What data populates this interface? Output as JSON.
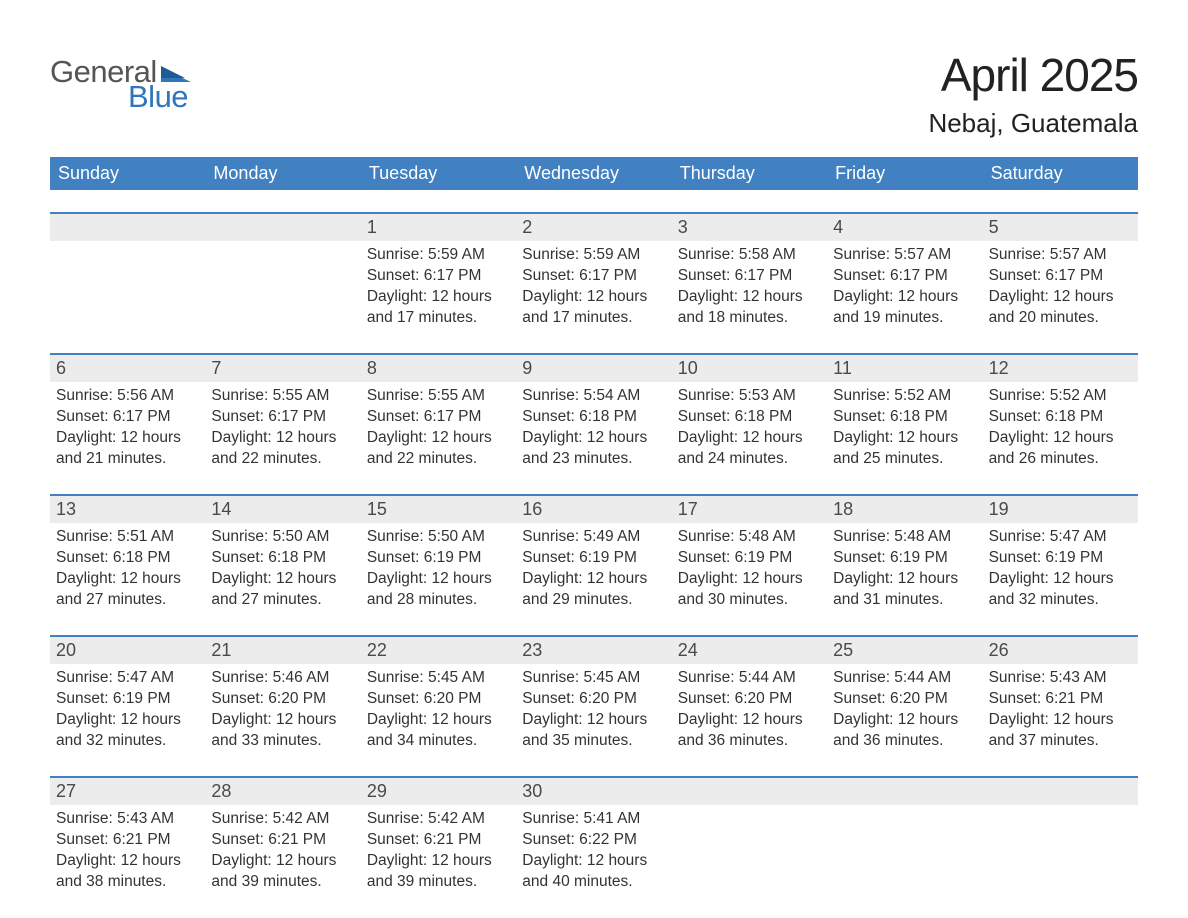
{
  "colors": {
    "header_blue": "#4180c1",
    "accent_line": "#4180c1",
    "row_grey": "#ececec",
    "page_bg": "#ffffff",
    "text": "#333333",
    "logo_grey": "#555555",
    "logo_blue": "#2f76bd"
  },
  "typography": {
    "month_title_fontsize": 46,
    "location_fontsize": 26,
    "day_header_fontsize": 18,
    "daynum_fontsize": 18,
    "details_fontsize": 15.5,
    "font_family": "Arial"
  },
  "logo": {
    "word1": "General",
    "word2": "Blue"
  },
  "header": {
    "month": "April 2025",
    "location": "Nebaj, Guatemala"
  },
  "day_names": [
    "Sunday",
    "Monday",
    "Tuesday",
    "Wednesday",
    "Thursday",
    "Friday",
    "Saturday"
  ],
  "labels": {
    "sunrise": "Sunrise: ",
    "sunset": "Sunset: ",
    "daylight": "Daylight: "
  },
  "weeks": [
    [
      {
        "day": "",
        "empty": true
      },
      {
        "day": "",
        "empty": true
      },
      {
        "day": "1",
        "sunrise": "5:59 AM",
        "sunset": "6:17 PM",
        "daylight": "12 hours and 17 minutes."
      },
      {
        "day": "2",
        "sunrise": "5:59 AM",
        "sunset": "6:17 PM",
        "daylight": "12 hours and 17 minutes."
      },
      {
        "day": "3",
        "sunrise": "5:58 AM",
        "sunset": "6:17 PM",
        "daylight": "12 hours and 18 minutes."
      },
      {
        "day": "4",
        "sunrise": "5:57 AM",
        "sunset": "6:17 PM",
        "daylight": "12 hours and 19 minutes."
      },
      {
        "day": "5",
        "sunrise": "5:57 AM",
        "sunset": "6:17 PM",
        "daylight": "12 hours and 20 minutes."
      }
    ],
    [
      {
        "day": "6",
        "sunrise": "5:56 AM",
        "sunset": "6:17 PM",
        "daylight": "12 hours and 21 minutes."
      },
      {
        "day": "7",
        "sunrise": "5:55 AM",
        "sunset": "6:17 PM",
        "daylight": "12 hours and 22 minutes."
      },
      {
        "day": "8",
        "sunrise": "5:55 AM",
        "sunset": "6:17 PM",
        "daylight": "12 hours and 22 minutes."
      },
      {
        "day": "9",
        "sunrise": "5:54 AM",
        "sunset": "6:18 PM",
        "daylight": "12 hours and 23 minutes."
      },
      {
        "day": "10",
        "sunrise": "5:53 AM",
        "sunset": "6:18 PM",
        "daylight": "12 hours and 24 minutes."
      },
      {
        "day": "11",
        "sunrise": "5:52 AM",
        "sunset": "6:18 PM",
        "daylight": "12 hours and 25 minutes."
      },
      {
        "day": "12",
        "sunrise": "5:52 AM",
        "sunset": "6:18 PM",
        "daylight": "12 hours and 26 minutes."
      }
    ],
    [
      {
        "day": "13",
        "sunrise": "5:51 AM",
        "sunset": "6:18 PM",
        "daylight": "12 hours and 27 minutes."
      },
      {
        "day": "14",
        "sunrise": "5:50 AM",
        "sunset": "6:18 PM",
        "daylight": "12 hours and 27 minutes."
      },
      {
        "day": "15",
        "sunrise": "5:50 AM",
        "sunset": "6:19 PM",
        "daylight": "12 hours and 28 minutes."
      },
      {
        "day": "16",
        "sunrise": "5:49 AM",
        "sunset": "6:19 PM",
        "daylight": "12 hours and 29 minutes."
      },
      {
        "day": "17",
        "sunrise": "5:48 AM",
        "sunset": "6:19 PM",
        "daylight": "12 hours and 30 minutes."
      },
      {
        "day": "18",
        "sunrise": "5:48 AM",
        "sunset": "6:19 PM",
        "daylight": "12 hours and 31 minutes."
      },
      {
        "day": "19",
        "sunrise": "5:47 AM",
        "sunset": "6:19 PM",
        "daylight": "12 hours and 32 minutes."
      }
    ],
    [
      {
        "day": "20",
        "sunrise": "5:47 AM",
        "sunset": "6:19 PM",
        "daylight": "12 hours and 32 minutes."
      },
      {
        "day": "21",
        "sunrise": "5:46 AM",
        "sunset": "6:20 PM",
        "daylight": "12 hours and 33 minutes."
      },
      {
        "day": "22",
        "sunrise": "5:45 AM",
        "sunset": "6:20 PM",
        "daylight": "12 hours and 34 minutes."
      },
      {
        "day": "23",
        "sunrise": "5:45 AM",
        "sunset": "6:20 PM",
        "daylight": "12 hours and 35 minutes."
      },
      {
        "day": "24",
        "sunrise": "5:44 AM",
        "sunset": "6:20 PM",
        "daylight": "12 hours and 36 minutes."
      },
      {
        "day": "25",
        "sunrise": "5:44 AM",
        "sunset": "6:20 PM",
        "daylight": "12 hours and 36 minutes."
      },
      {
        "day": "26",
        "sunrise": "5:43 AM",
        "sunset": "6:21 PM",
        "daylight": "12 hours and 37 minutes."
      }
    ],
    [
      {
        "day": "27",
        "sunrise": "5:43 AM",
        "sunset": "6:21 PM",
        "daylight": "12 hours and 38 minutes."
      },
      {
        "day": "28",
        "sunrise": "5:42 AM",
        "sunset": "6:21 PM",
        "daylight": "12 hours and 39 minutes."
      },
      {
        "day": "29",
        "sunrise": "5:42 AM",
        "sunset": "6:21 PM",
        "daylight": "12 hours and 39 minutes."
      },
      {
        "day": "30",
        "sunrise": "5:41 AM",
        "sunset": "6:22 PM",
        "daylight": "12 hours and 40 minutes."
      },
      {
        "day": "",
        "empty": true
      },
      {
        "day": "",
        "empty": true
      },
      {
        "day": "",
        "empty": true
      }
    ]
  ]
}
